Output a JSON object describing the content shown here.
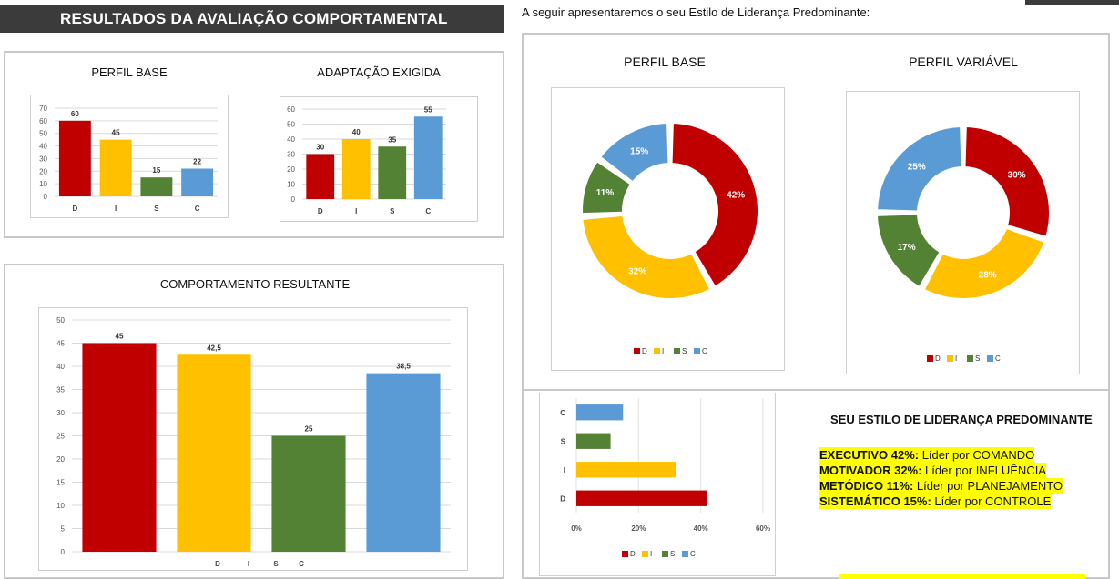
{
  "header": {
    "title": "RESULTADOS DA AVALIAÇÃO COMPORTAMENTAL",
    "intro": "A seguir apresentaremos o seu Estilo de Liderança Predominante:"
  },
  "colors": {
    "D": "#c00000",
    "I": "#ffc000",
    "S": "#548235",
    "C": "#5b9bd5"
  },
  "legend": [
    "D",
    "I",
    "S",
    "C"
  ],
  "chart_data": [
    {
      "id": "perfil-base-bar",
      "type": "bar",
      "title": "PERFIL BASE",
      "categories": [
        "D",
        "I",
        "S",
        "C"
      ],
      "values": [
        60,
        45,
        15,
        22
      ],
      "data_labels": [
        "60",
        "45",
        "15",
        "22"
      ],
      "ylim": [
        0,
        70
      ],
      "yticks": [
        0,
        10,
        20,
        30,
        40,
        50,
        60,
        70
      ],
      "grid": true
    },
    {
      "id": "adaptacao-exigida-bar",
      "type": "bar",
      "title": "ADAPTAÇÃO EXIGIDA",
      "categories": [
        "D",
        "I",
        "S",
        "C"
      ],
      "values": [
        30,
        40,
        35,
        55
      ],
      "data_labels": [
        "30",
        "40",
        "35",
        "55"
      ],
      "ylim": [
        0,
        60
      ],
      "yticks": [
        0,
        10,
        20,
        30,
        40,
        50,
        60
      ],
      "grid": true
    },
    {
      "id": "comportamento-resultante-bar",
      "type": "bar",
      "title": "COMPORTAMENTO RESULTANTE",
      "categories": [
        "D",
        "I",
        "S",
        "C"
      ],
      "values": [
        45,
        42.5,
        25,
        38.5
      ],
      "data_labels": [
        "45",
        "42,5",
        "25",
        "38,5"
      ],
      "ylim": [
        0,
        50
      ],
      "yticks": [
        0,
        5,
        10,
        15,
        20,
        25,
        30,
        35,
        40,
        45,
        50
      ],
      "grid": true
    },
    {
      "id": "perfil-base-donut",
      "type": "pie",
      "title": "PERFIL BASE",
      "categories": [
        "D",
        "I",
        "S",
        "C"
      ],
      "values": [
        42,
        32,
        11,
        15
      ],
      "data_labels": [
        "42%",
        "32%",
        "11%",
        "15%"
      ],
      "legend_position": "bottom"
    },
    {
      "id": "perfil-variavel-donut",
      "type": "pie",
      "title": "PERFIL VARIÁVEL",
      "categories": [
        "D",
        "I",
        "S",
        "C"
      ],
      "values": [
        30,
        28,
        17,
        25
      ],
      "data_labels": [
        "30%",
        "28%",
        "17%",
        "25%"
      ],
      "legend_position": "bottom"
    },
    {
      "id": "estilo-hbar",
      "type": "bar",
      "orientation": "horizontal",
      "categories": [
        "D",
        "I",
        "S",
        "C"
      ],
      "values": [
        42,
        32,
        11,
        15
      ],
      "xlim": [
        0,
        60
      ],
      "xticks": [
        "0%",
        "20%",
        "40%",
        "60%"
      ],
      "grid": true,
      "legend_position": "bottom"
    }
  ],
  "style": {
    "title": "SEU ESTILO DE LIDERANÇA PREDOMINANTE",
    "lines": [
      {
        "name": "EXECUTIVO 42%:",
        "desc": " Líder por COMANDO"
      },
      {
        "name": "MOTIVADOR 32%:",
        "desc": " Líder por INFLUÊNCIA"
      },
      {
        "name": "METÓDICO 11%:",
        "desc": " Líder por PLANEJAMENTO"
      },
      {
        "name": "SISTEMÁTICO 15%:",
        "desc": " Líder por CONTROLE"
      }
    ]
  }
}
